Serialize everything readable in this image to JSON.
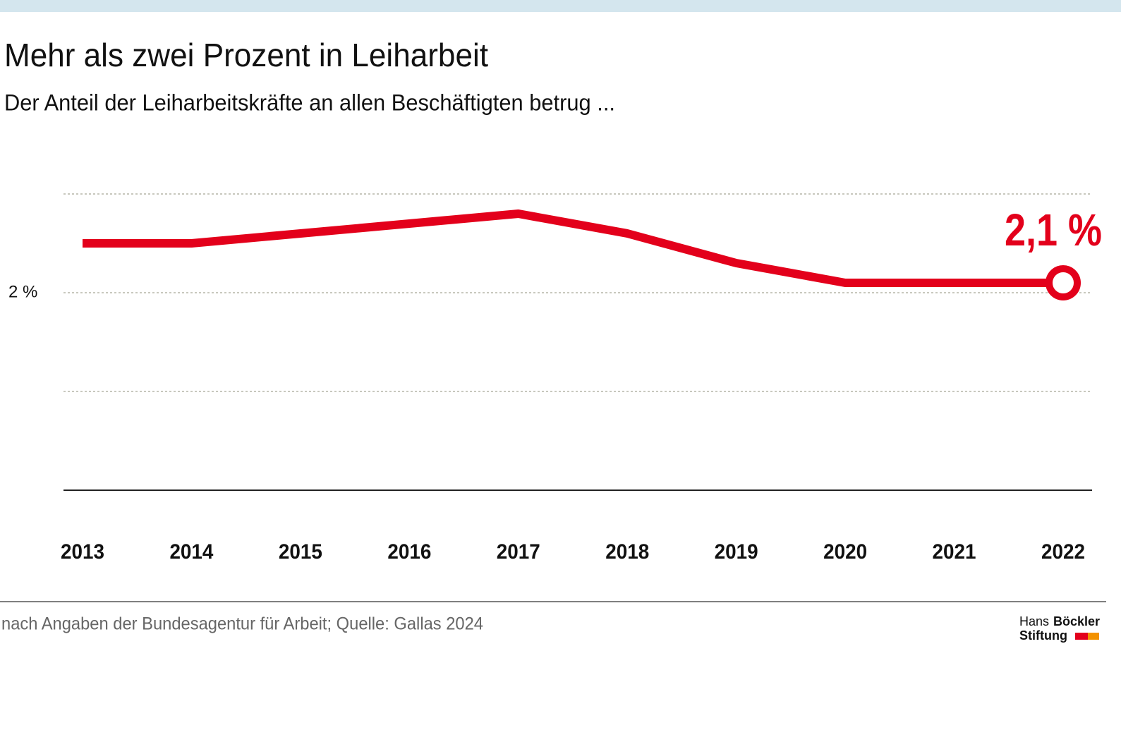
{
  "chart_data": {
    "type": "line",
    "title": "Mehr als zwei Prozent in Leiharbeit",
    "subtitle": "Der Anteil der Leiharbeitskräfte an allen Beschäftigten betrug ...",
    "categories": [
      "2013",
      "2014",
      "2015",
      "2016",
      "2017",
      "2018",
      "2019",
      "2020",
      "2021",
      "2022"
    ],
    "series": [
      {
        "color": "#e3001b",
        "values": [
          2.5,
          2.5,
          2.6,
          2.7,
          2.8,
          2.6,
          2.3,
          2.1,
          2.1,
          2.1
        ],
        "value_labels": [
          null,
          null,
          null,
          null,
          null,
          null,
          null,
          null,
          null,
          "2,1 %"
        ]
      }
    ],
    "ylim": [
      0,
      3
    ],
    "yticks": [
      {
        "value": 2,
        "label": "2 %"
      }
    ],
    "ygrid": [
      1,
      2,
      3
    ],
    "grid": true,
    "source": "nach Angaben der Bundesagentur für Arbeit; Quelle: Gallas 2024",
    "logo": {
      "line1a": "Hans",
      "line1b": "Böckler",
      "line2": "Stiftung"
    }
  }
}
